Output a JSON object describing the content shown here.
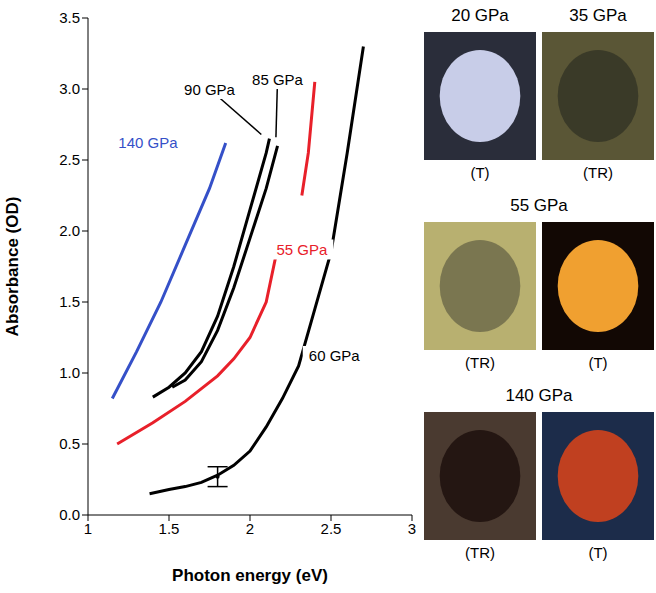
{
  "chart_data": {
    "type": "line",
    "xlabel": "Photon energy (eV)",
    "ylabel": "Absorbance (OD)",
    "xlim": [
      1,
      3
    ],
    "xticks": [
      1,
      1.5,
      2,
      2.5,
      3
    ],
    "ylim": [
      0,
      3.5
    ],
    "yticks": [
      {
        "value": 0,
        "label": "0.0"
      },
      {
        "value": 0.5,
        "label": "0.5"
      },
      {
        "value": 1,
        "label": "1.0"
      },
      {
        "value": 1.5,
        "label": "1.5"
      },
      {
        "value": 2,
        "label": "2.0"
      },
      {
        "value": 2.5,
        "label": "2.5"
      },
      {
        "value": 3,
        "label": "3.0"
      },
      {
        "value": 3.5,
        "label": "3.5"
      }
    ],
    "grid": false,
    "series": [
      {
        "name": "140 GPa",
        "color": "#3550c8",
        "x": [
          1.15,
          1.3,
          1.45,
          1.6,
          1.75,
          1.85
        ],
        "values": [
          0.82,
          1.15,
          1.5,
          1.9,
          2.3,
          2.62
        ],
        "label_at": [
          1.37,
          2.62
        ]
      },
      {
        "name": "90 GPa",
        "color": "#000000",
        "x": [
          1.4,
          1.5,
          1.6,
          1.7,
          1.8,
          1.9,
          2.0,
          2.1,
          2.12
        ],
        "values": [
          0.83,
          0.9,
          1.0,
          1.15,
          1.4,
          1.75,
          2.15,
          2.55,
          2.65
        ],
        "label_at": [
          1.75,
          3.0
        ],
        "arrow_to": [
          2.07,
          2.68
        ]
      },
      {
        "name": "85 GPa",
        "color": "#000000",
        "x": [
          1.52,
          1.6,
          1.7,
          1.8,
          1.9,
          2.0,
          2.1,
          2.17
        ],
        "values": [
          0.9,
          0.95,
          1.08,
          1.3,
          1.6,
          1.95,
          2.3,
          2.6
        ],
        "label_at": [
          2.17,
          3.07
        ],
        "arrow_to": [
          2.16,
          2.66
        ]
      },
      {
        "name": "55 GPa",
        "color": "#e8202a",
        "x": [
          1.18,
          1.4,
          1.6,
          1.8,
          1.9,
          2.0,
          2.1,
          2.17,
          2.25,
          2.32,
          2.36,
          2.4
        ],
        "values": [
          0.5,
          0.65,
          0.8,
          0.98,
          1.1,
          1.25,
          1.5,
          1.88,
          null,
          2.25,
          2.55,
          3.05
        ],
        "label_at": [
          2.32,
          1.87
        ]
      },
      {
        "name": "60 GPa",
        "color": "#000000",
        "x": [
          1.38,
          1.5,
          1.6,
          1.7,
          1.8,
          1.9,
          2.0,
          2.1,
          2.2,
          2.3,
          2.4,
          2.5,
          2.6,
          2.7
        ],
        "values": [
          0.15,
          0.18,
          0.2,
          0.23,
          0.28,
          0.35,
          0.45,
          0.62,
          0.82,
          1.05,
          1.45,
          1.85,
          2.55,
          3.3
        ],
        "label_at": [
          2.52,
          1.12
        ]
      }
    ],
    "error_bar": {
      "x": 1.8,
      "y": 0.27,
      "error": 0.07
    },
    "marker": "point"
  },
  "images": [
    {
      "titles": [
        "20 GPa",
        "35 GPa"
      ],
      "captions": [
        "(T)",
        "(TR)"
      ]
    },
    {
      "titles": [
        "55 GPa"
      ],
      "captions": [
        "(TR)",
        "(T)"
      ]
    },
    {
      "titles": [
        "140 GPa"
      ],
      "captions": [
        "(TR)",
        "(T)"
      ]
    }
  ]
}
